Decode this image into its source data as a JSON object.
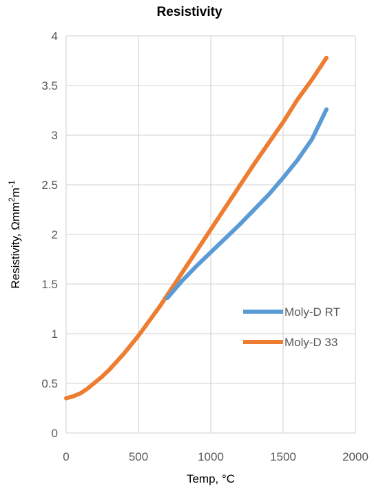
{
  "chart_data": {
    "type": "line",
    "title": "Resistivity",
    "xlabel": "Temp, °C",
    "ylabel_parts": {
      "base": "Resistivity, Ωmm",
      "sup1": "2",
      "mid": "m",
      "sup2": "-1"
    },
    "xlim": [
      0,
      2000
    ],
    "ylim": [
      0,
      4
    ],
    "x_ticks": [
      {
        "value": 0,
        "label": "0"
      },
      {
        "value": 500,
        "label": "500"
      },
      {
        "value": 1000,
        "label": "1000"
      },
      {
        "value": 1500,
        "label": "1500"
      },
      {
        "value": 2000,
        "label": "2000"
      }
    ],
    "y_ticks": [
      {
        "value": 0,
        "label": "0"
      },
      {
        "value": 0.5,
        "label": "0.5"
      },
      {
        "value": 1,
        "label": "1"
      },
      {
        "value": 1.5,
        "label": "1.5"
      },
      {
        "value": 2,
        "label": "2"
      },
      {
        "value": 2.5,
        "label": "2.5"
      },
      {
        "value": 3,
        "label": "3"
      },
      {
        "value": 3.5,
        "label": "3.5"
      },
      {
        "value": 4,
        "label": "4"
      }
    ],
    "grid": true,
    "legend_position": "right",
    "series": [
      {
        "name": "Moly-D RT",
        "color": "#5B9BD5",
        "x": [
          700,
          800,
          900,
          1000,
          1100,
          1200,
          1300,
          1400,
          1500,
          1600,
          1700,
          1800
        ],
        "y": [
          1.36,
          1.53,
          1.68,
          1.82,
          1.96,
          2.1,
          2.25,
          2.4,
          2.57,
          2.75,
          2.96,
          3.26
        ]
      },
      {
        "name": "Moly-D 33",
        "color": "#ED7D31",
        "x": [
          0,
          50,
          100,
          150,
          200,
          250,
          300,
          350,
          400,
          450,
          500,
          550,
          600,
          650,
          700,
          800,
          900,
          1000,
          1100,
          1200,
          1300,
          1400,
          1500,
          1600,
          1700,
          1800
        ],
        "y": [
          0.35,
          0.37,
          0.4,
          0.45,
          0.51,
          0.57,
          0.64,
          0.72,
          0.8,
          0.89,
          0.98,
          1.08,
          1.18,
          1.28,
          1.39,
          1.61,
          1.83,
          2.05,
          2.27,
          2.49,
          2.71,
          2.92,
          3.13,
          3.36,
          3.56,
          3.78
        ]
      }
    ]
  }
}
